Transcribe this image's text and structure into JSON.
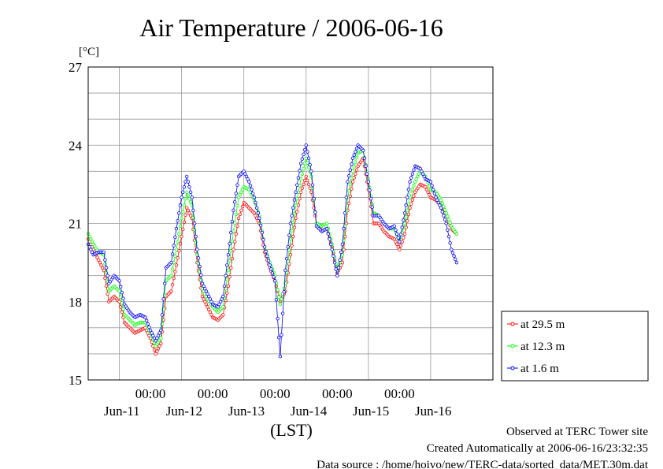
{
  "chart_data": {
    "type": "line",
    "title": "Air Temperature / 2006-06-16",
    "unit_label": "[°C]",
    "xlabel": "(LST)",
    "ylim": [
      15,
      27
    ],
    "yticks": [
      "15",
      "18",
      "21",
      "24",
      "27"
    ],
    "x_range": [
      "2006-06-10T12:00",
      "2006-06-16T24:00"
    ],
    "x_time_ticks": [
      "00:00",
      "00:00",
      "00:00",
      "00:00",
      "00:00"
    ],
    "x_day_labels": [
      "Jun-11",
      "Jun-12",
      "Jun-13",
      "Jun-14",
      "Jun-15",
      "Jun-16"
    ],
    "grid": true,
    "legend_placement": "right",
    "series": [
      {
        "name": "at 29.5 m",
        "color": "#ff0000",
        "points": [
          [
            "06-10 12:00",
            20.4
          ],
          [
            "06-10 14:00",
            20.0
          ],
          [
            "06-10 16:00",
            19.6
          ],
          [
            "06-10 18:00",
            19.2
          ],
          [
            "06-10 20:00",
            18.0
          ],
          [
            "06-10 22:00",
            18.2
          ],
          [
            "06-11 00:00",
            18.0
          ],
          [
            "06-11 02:00",
            17.2
          ],
          [
            "06-11 04:00",
            17.0
          ],
          [
            "06-11 06:00",
            16.8
          ],
          [
            "06-11 08:00",
            16.9
          ],
          [
            "06-11 10:00",
            17.0
          ],
          [
            "06-11 12:00",
            16.6
          ],
          [
            "06-11 14:00",
            16.0
          ],
          [
            "06-11 16:00",
            16.4
          ],
          [
            "06-11 18:00",
            18.2
          ],
          [
            "06-11 20:00",
            18.4
          ],
          [
            "06-11 22:00",
            19.4
          ],
          [
            "06-12 00:00",
            20.5
          ],
          [
            "06-12 02:00",
            21.6
          ],
          [
            "06-12 04:00",
            21.2
          ],
          [
            "06-12 06:00",
            19.5
          ],
          [
            "06-12 08:00",
            18.2
          ],
          [
            "06-12 10:00",
            17.8
          ],
          [
            "06-12 12:00",
            17.4
          ],
          [
            "06-12 14:00",
            17.3
          ],
          [
            "06-12 16:00",
            17.5
          ],
          [
            "06-12 18:00",
            18.6
          ],
          [
            "06-12 20:00",
            20.0
          ],
          [
            "06-12 22:00",
            21.2
          ],
          [
            "06-13 00:00",
            21.8
          ],
          [
            "06-13 02:00",
            21.6
          ],
          [
            "06-13 04:00",
            21.4
          ],
          [
            "06-13 06:00",
            21.0
          ],
          [
            "06-13 08:00",
            19.9
          ],
          [
            "06-13 10:00",
            19.3
          ],
          [
            "06-13 12:00",
            18.8
          ],
          [
            "06-13 14:00",
            18.0
          ],
          [
            "06-13 16:00",
            18.4
          ],
          [
            "06-13 18:00",
            19.8
          ],
          [
            "06-13 20:00",
            21.2
          ],
          [
            "06-13 22:00",
            22.2
          ],
          [
            "06-14 00:00",
            22.8
          ],
          [
            "06-14 02:00",
            22.2
          ],
          [
            "06-14 04:00",
            21.0
          ],
          [
            "06-14 06:00",
            20.7
          ],
          [
            "06-14 08:00",
            20.8
          ],
          [
            "06-14 10:00",
            20.1
          ],
          [
            "06-14 12:00",
            19.1
          ],
          [
            "06-14 14:00",
            19.5
          ],
          [
            "06-14 16:00",
            21.5
          ],
          [
            "06-14 18:00",
            22.6
          ],
          [
            "06-14 20:00",
            23.2
          ],
          [
            "06-14 22:00",
            23.5
          ],
          [
            "06-15 00:00",
            22.3
          ],
          [
            "06-15 02:00",
            21.0
          ],
          [
            "06-15 04:00",
            21.0
          ],
          [
            "06-15 06:00",
            20.7
          ],
          [
            "06-15 08:00",
            20.5
          ],
          [
            "06-15 10:00",
            20.4
          ],
          [
            "06-15 12:00",
            20.0
          ],
          [
            "06-15 14:00",
            20.6
          ],
          [
            "06-15 16:00",
            21.6
          ],
          [
            "06-15 18:00",
            22.2
          ],
          [
            "06-15 20:00",
            22.5
          ],
          [
            "06-15 22:00",
            22.4
          ],
          [
            "06-16 00:00",
            22.0
          ],
          [
            "06-16 02:00",
            21.9
          ],
          [
            "06-16 04:00",
            21.7
          ],
          [
            "06-16 06:00",
            21.3
          ],
          [
            "06-16 08:00",
            20.8
          ],
          [
            "06-16 10:00",
            20.6
          ]
        ]
      },
      {
        "name": "at 12.3 m",
        "color": "#00ff00",
        "points": [
          [
            "06-10 12:00",
            20.6
          ],
          [
            "06-10 14:00",
            20.2
          ],
          [
            "06-10 16:00",
            19.9
          ],
          [
            "06-10 18:00",
            19.8
          ],
          [
            "06-10 20:00",
            18.4
          ],
          [
            "06-10 22:00",
            18.6
          ],
          [
            "06-11 00:00",
            18.4
          ],
          [
            "06-11 02:00",
            17.5
          ],
          [
            "06-11 04:00",
            17.3
          ],
          [
            "06-11 06:00",
            17.1
          ],
          [
            "06-11 08:00",
            17.2
          ],
          [
            "06-11 10:00",
            17.2
          ],
          [
            "06-11 12:00",
            16.8
          ],
          [
            "06-11 14:00",
            16.3
          ],
          [
            "06-11 16:00",
            16.6
          ],
          [
            "06-11 18:00",
            18.8
          ],
          [
            "06-11 20:00",
            19.0
          ],
          [
            "06-11 22:00",
            20.0
          ],
          [
            "06-12 00:00",
            21.2
          ],
          [
            "06-12 02:00",
            22.2
          ],
          [
            "06-12 04:00",
            21.7
          ],
          [
            "06-12 06:00",
            19.8
          ],
          [
            "06-12 08:00",
            18.5
          ],
          [
            "06-12 10:00",
            18.1
          ],
          [
            "06-12 12:00",
            17.8
          ],
          [
            "06-12 14:00",
            17.6
          ],
          [
            "06-12 16:00",
            17.8
          ],
          [
            "06-12 18:00",
            19.2
          ],
          [
            "06-12 20:00",
            20.7
          ],
          [
            "06-12 22:00",
            22.0
          ],
          [
            "06-13 00:00",
            22.4
          ],
          [
            "06-13 02:00",
            22.3
          ],
          [
            "06-13 04:00",
            21.9
          ],
          [
            "06-13 06:00",
            21.3
          ],
          [
            "06-13 08:00",
            20.1
          ],
          [
            "06-13 10:00",
            19.5
          ],
          [
            "06-13 12:00",
            19.0
          ],
          [
            "06-13 14:00",
            17.9
          ],
          [
            "06-13 16:00",
            18.7
          ],
          [
            "06-13 18:00",
            20.4
          ],
          [
            "06-13 20:00",
            21.7
          ],
          [
            "06-13 22:00",
            22.7
          ],
          [
            "06-14 00:00",
            23.5
          ],
          [
            "06-14 02:00",
            22.8
          ],
          [
            "06-14 04:00",
            21.0
          ],
          [
            "06-14 06:00",
            20.9
          ],
          [
            "06-14 08:00",
            21.0
          ],
          [
            "06-14 10:00",
            20.2
          ],
          [
            "06-14 12:00",
            19.2
          ],
          [
            "06-14 14:00",
            19.8
          ],
          [
            "06-14 16:00",
            22.0
          ],
          [
            "06-14 18:00",
            23.0
          ],
          [
            "06-14 20:00",
            23.7
          ],
          [
            "06-14 22:00",
            23.8
          ],
          [
            "06-15 00:00",
            22.7
          ],
          [
            "06-15 02:00",
            21.4
          ],
          [
            "06-15 04:00",
            21.3
          ],
          [
            "06-15 06:00",
            21.0
          ],
          [
            "06-15 08:00",
            20.8
          ],
          [
            "06-15 10:00",
            20.8
          ],
          [
            "06-15 12:00",
            20.3
          ],
          [
            "06-15 14:00",
            21.0
          ],
          [
            "06-15 16:00",
            22.0
          ],
          [
            "06-15 18:00",
            22.6
          ],
          [
            "06-15 20:00",
            23.0
          ],
          [
            "06-15 22:00",
            22.8
          ],
          [
            "06-16 00:00",
            22.3
          ],
          [
            "06-16 02:00",
            22.2
          ],
          [
            "06-16 04:00",
            21.9
          ],
          [
            "06-16 06:00",
            21.4
          ],
          [
            "06-16 08:00",
            20.9
          ],
          [
            "06-16 10:00",
            20.6
          ]
        ]
      },
      {
        "name": "at 1.6 m",
        "color": "#0000ff",
        "points": [
          [
            "06-10 12:00",
            20.2
          ],
          [
            "06-10 14:00",
            19.8
          ],
          [
            "06-10 16:00",
            19.9
          ],
          [
            "06-10 18:00",
            19.9
          ],
          [
            "06-10 20:00",
            18.7
          ],
          [
            "06-10 22:00",
            19.0
          ],
          [
            "06-11 00:00",
            18.8
          ],
          [
            "06-11 02:00",
            17.9
          ],
          [
            "06-11 04:00",
            17.6
          ],
          [
            "06-11 06:00",
            17.4
          ],
          [
            "06-11 08:00",
            17.5
          ],
          [
            "06-11 10:00",
            17.4
          ],
          [
            "06-11 12:00",
            16.9
          ],
          [
            "06-11 14:00",
            16.5
          ],
          [
            "06-11 16:00",
            16.9
          ],
          [
            "06-11 18:00",
            19.3
          ],
          [
            "06-11 20:00",
            19.5
          ],
          [
            "06-11 22:00",
            20.8
          ],
          [
            "06-12 00:00",
            22.0
          ],
          [
            "06-12 02:00",
            22.8
          ],
          [
            "06-12 04:00",
            22.0
          ],
          [
            "06-12 06:00",
            20.0
          ],
          [
            "06-12 08:00",
            18.7
          ],
          [
            "06-12 10:00",
            18.3
          ],
          [
            "06-12 12:00",
            17.9
          ],
          [
            "06-12 14:00",
            17.8
          ],
          [
            "06-12 16:00",
            18.2
          ],
          [
            "06-12 18:00",
            19.8
          ],
          [
            "06-12 20:00",
            21.5
          ],
          [
            "06-12 22:00",
            22.8
          ],
          [
            "06-13 00:00",
            23.0
          ],
          [
            "06-13 02:00",
            22.6
          ],
          [
            "06-13 04:00",
            22.0
          ],
          [
            "06-13 06:00",
            21.2
          ],
          [
            "06-13 08:00",
            20.1
          ],
          [
            "06-13 10:00",
            19.4
          ],
          [
            "06-13 12:00",
            18.8
          ],
          [
            "06-13 14:00",
            15.9
          ],
          [
            "06-13 16:00",
            19.2
          ],
          [
            "06-13 18:00",
            21.0
          ],
          [
            "06-13 20:00",
            22.2
          ],
          [
            "06-13 22:00",
            23.3
          ],
          [
            "06-14 00:00",
            24.0
          ],
          [
            "06-14 02:00",
            23.0
          ],
          [
            "06-14 04:00",
            20.9
          ],
          [
            "06-14 06:00",
            20.7
          ],
          [
            "06-14 08:00",
            20.8
          ],
          [
            "06-14 10:00",
            20.0
          ],
          [
            "06-14 12:00",
            19.0
          ],
          [
            "06-14 14:00",
            20.2
          ],
          [
            "06-14 16:00",
            22.6
          ],
          [
            "06-14 18:00",
            23.5
          ],
          [
            "06-14 20:00",
            24.0
          ],
          [
            "06-14 22:00",
            23.8
          ],
          [
            "06-15 00:00",
            22.6
          ],
          [
            "06-15 02:00",
            21.3
          ],
          [
            "06-15 04:00",
            21.3
          ],
          [
            "06-15 06:00",
            21.0
          ],
          [
            "06-15 08:00",
            20.8
          ],
          [
            "06-15 10:00",
            20.9
          ],
          [
            "06-15 12:00",
            20.3
          ],
          [
            "06-15 14:00",
            21.4
          ],
          [
            "06-15 16:00",
            22.6
          ],
          [
            "06-15 18:00",
            23.2
          ],
          [
            "06-15 20:00",
            23.1
          ],
          [
            "06-15 22:00",
            22.7
          ],
          [
            "06-16 00:00",
            22.6
          ],
          [
            "06-16 02:00",
            22.0
          ],
          [
            "06-16 04:00",
            21.6
          ],
          [
            "06-16 06:00",
            21.0
          ],
          [
            "06-16 08:00",
            20.0
          ],
          [
            "06-16 10:00",
            19.5
          ]
        ]
      }
    ]
  },
  "footer": {
    "observed": "Observed at TERC Tower site",
    "created": "Created Automatically at 2006-06-16/23:32:35",
    "source": "Data source : /home/hoivo/new/TERC-data/sorted_data/MET.30m.dat"
  }
}
